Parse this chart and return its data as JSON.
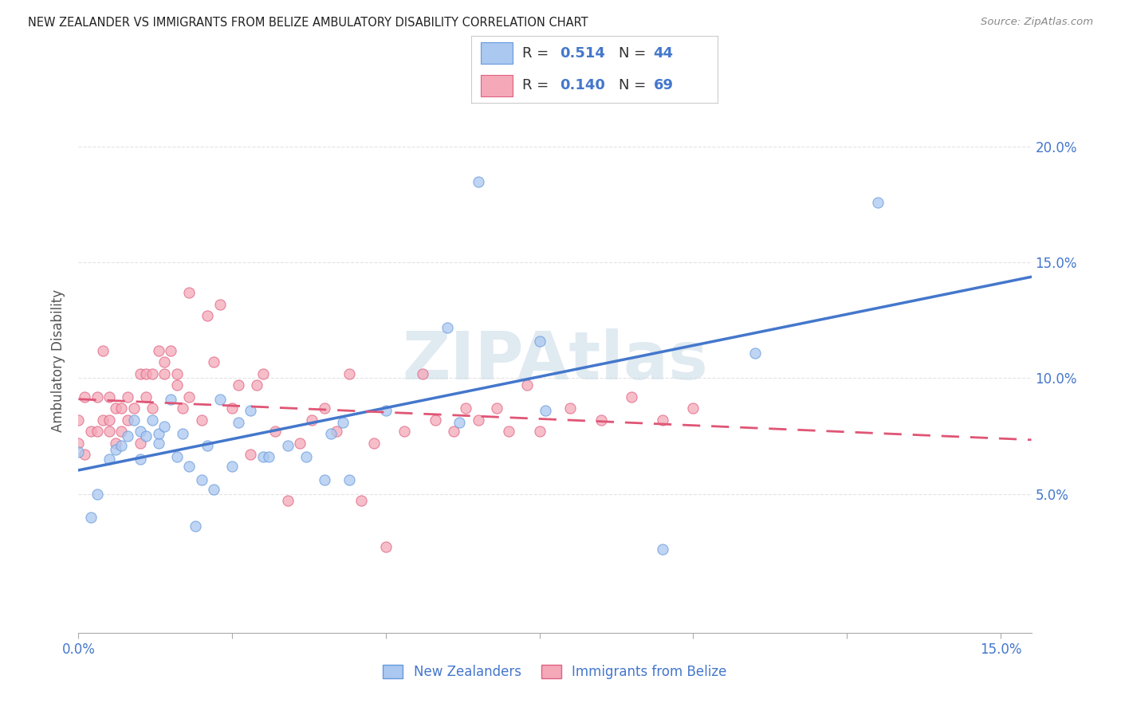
{
  "title": "NEW ZEALANDER VS IMMIGRANTS FROM BELIZE AMBULATORY DISABILITY CORRELATION CHART",
  "source": "Source: ZipAtlas.com",
  "ylabel": "Ambulatory Disability",
  "xlim": [
    0.0,
    0.155
  ],
  "ylim": [
    -0.01,
    0.225
  ],
  "color_nz_fill": "#aac8f0",
  "color_nz_edge": "#6699dd",
  "color_belize_fill": "#f4a8b8",
  "color_belize_edge": "#e06080",
  "color_nz_line": "#4477cc",
  "color_belize_line": "#e05575",
  "color_r_blue": "#4477cc",
  "color_grid": "#dddddd",
  "watermark_color": "#ccdde8",
  "nz_x": [
    0.0,
    0.002,
    0.003,
    0.005,
    0.006,
    0.007,
    0.008,
    0.009,
    0.01,
    0.01,
    0.011,
    0.012,
    0.013,
    0.013,
    0.014,
    0.015,
    0.016,
    0.017,
    0.018,
    0.019,
    0.02,
    0.021,
    0.022,
    0.023,
    0.025,
    0.026,
    0.028,
    0.03,
    0.031,
    0.034,
    0.037,
    0.04,
    0.041,
    0.043,
    0.044,
    0.05,
    0.06,
    0.062,
    0.065,
    0.075,
    0.076,
    0.095,
    0.11,
    0.13
  ],
  "nz_y": [
    0.068,
    0.04,
    0.05,
    0.065,
    0.069,
    0.071,
    0.075,
    0.082,
    0.065,
    0.077,
    0.075,
    0.082,
    0.072,
    0.076,
    0.079,
    0.091,
    0.066,
    0.076,
    0.062,
    0.036,
    0.056,
    0.071,
    0.052,
    0.091,
    0.062,
    0.081,
    0.086,
    0.066,
    0.066,
    0.071,
    0.066,
    0.056,
    0.076,
    0.081,
    0.056,
    0.086,
    0.122,
    0.081,
    0.185,
    0.116,
    0.086,
    0.026,
    0.111,
    0.176
  ],
  "belize_x": [
    0.0,
    0.0,
    0.001,
    0.001,
    0.002,
    0.003,
    0.003,
    0.004,
    0.004,
    0.005,
    0.005,
    0.005,
    0.006,
    0.006,
    0.007,
    0.007,
    0.008,
    0.008,
    0.009,
    0.01,
    0.01,
    0.011,
    0.011,
    0.012,
    0.012,
    0.013,
    0.014,
    0.014,
    0.015,
    0.016,
    0.016,
    0.017,
    0.018,
    0.018,
    0.02,
    0.021,
    0.022,
    0.023,
    0.025,
    0.026,
    0.028,
    0.029,
    0.03,
    0.032,
    0.034,
    0.036,
    0.038,
    0.04,
    0.042,
    0.044,
    0.046,
    0.048,
    0.05,
    0.053,
    0.056,
    0.058,
    0.061,
    0.063,
    0.065,
    0.068,
    0.07,
    0.073,
    0.075,
    0.08,
    0.085,
    0.09,
    0.095,
    0.1
  ],
  "belize_y": [
    0.072,
    0.082,
    0.067,
    0.092,
    0.077,
    0.077,
    0.092,
    0.082,
    0.112,
    0.082,
    0.092,
    0.077,
    0.087,
    0.072,
    0.087,
    0.077,
    0.092,
    0.082,
    0.087,
    0.072,
    0.102,
    0.092,
    0.102,
    0.087,
    0.102,
    0.112,
    0.102,
    0.107,
    0.112,
    0.097,
    0.102,
    0.087,
    0.092,
    0.137,
    0.082,
    0.127,
    0.107,
    0.132,
    0.087,
    0.097,
    0.067,
    0.097,
    0.102,
    0.077,
    0.047,
    0.072,
    0.082,
    0.087,
    0.077,
    0.102,
    0.047,
    0.072,
    0.027,
    0.077,
    0.102,
    0.082,
    0.077,
    0.087,
    0.082,
    0.087,
    0.077,
    0.097,
    0.077,
    0.087,
    0.082,
    0.092,
    0.082,
    0.087
  ]
}
